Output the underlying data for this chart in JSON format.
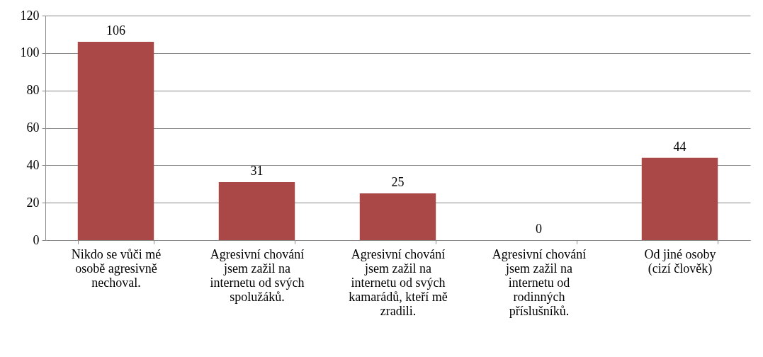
{
  "chart_data": {
    "type": "bar",
    "categories": [
      "Nikdo se vůči mé osobě agresivně nechoval.",
      "Agresivní chování jsem zažil na internetu od svých spolužáků.",
      "Agresivní chování jsem zažil na internetu od svých kamarádů, kteří mě zradili.",
      "Agresivní chování jsem zažil na internetu od rodinných příslušníků.",
      "Od jiné osoby (cizí člověk)"
    ],
    "values": [
      106,
      31,
      25,
      0,
      44
    ],
    "color": "#a94846",
    "ylim": [
      0,
      120
    ],
    "yticks": [
      0,
      20,
      40,
      60,
      80,
      100,
      120
    ],
    "grid": "y",
    "data_labels": true
  }
}
